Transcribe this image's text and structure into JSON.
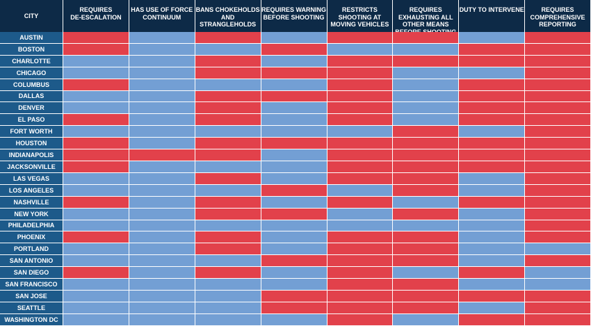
{
  "colors": {
    "header_bg": "#0d2a47",
    "row_label_bg": "#1d5a8a",
    "yes": "#e2414b",
    "no": "#739fd4",
    "grid_line": "#ffffff"
  },
  "chart_data": {
    "type": "heatmap",
    "row_header": "CITY",
    "columns": [
      "REQUIRES\nDE-ESCALATION",
      "HAS USE OF FORCE\nCONTINUUM",
      "BANS CHOKEHOLDS\nAND\nSTRANGLEHOLDS",
      "REQUIRES WARNING\nBEFORE SHOOTING",
      "RESTRICTS\nSHOOTING AT\nMOVING VEHICLES",
      "REQUIRES\nEXHAUSTING ALL\nOTHER MEANS\nBEFORE SHOOTING",
      "DUTY TO INTERVENE",
      "REQUIRES\nCOMPREHENSIVE\nREPORTING"
    ],
    "rows": [
      {
        "city": "AUSTIN",
        "values": [
          1,
          0,
          1,
          0,
          1,
          1,
          0,
          1
        ]
      },
      {
        "city": "BOSTON",
        "values": [
          1,
          0,
          0,
          1,
          0,
          0,
          1,
          1
        ]
      },
      {
        "city": "CHARLOTTE",
        "values": [
          0,
          0,
          1,
          0,
          1,
          1,
          1,
          1
        ]
      },
      {
        "city": "CHICAGO",
        "values": [
          0,
          0,
          1,
          1,
          1,
          0,
          0,
          1
        ]
      },
      {
        "city": "COLUMBUS",
        "values": [
          1,
          0,
          0,
          0,
          1,
          0,
          1,
          1
        ]
      },
      {
        "city": "DALLAS",
        "values": [
          0,
          0,
          1,
          1,
          1,
          0,
          1,
          1
        ]
      },
      {
        "city": "DENVER",
        "values": [
          0,
          0,
          1,
          0,
          1,
          0,
          1,
          1
        ]
      },
      {
        "city": "EL PASO",
        "values": [
          1,
          0,
          1,
          0,
          1,
          0,
          1,
          1
        ]
      },
      {
        "city": "FORT WORTH",
        "values": [
          0,
          0,
          0,
          0,
          0,
          1,
          0,
          1
        ]
      },
      {
        "city": "HOUSTON",
        "values": [
          1,
          0,
          1,
          1,
          1,
          1,
          1,
          1
        ]
      },
      {
        "city": "INDIANAPOLIS",
        "values": [
          1,
          1,
          1,
          0,
          1,
          1,
          1,
          1
        ]
      },
      {
        "city": "JACKSONVILLE",
        "values": [
          1,
          0,
          0,
          0,
          1,
          1,
          1,
          1
        ]
      },
      {
        "city": "LAS VEGAS",
        "values": [
          0,
          0,
          1,
          0,
          1,
          1,
          0,
          1
        ]
      },
      {
        "city": "LOS ANGELES",
        "values": [
          0,
          0,
          0,
          1,
          0,
          1,
          0,
          1
        ]
      },
      {
        "city": "NASHVILLE",
        "values": [
          1,
          0,
          1,
          0,
          1,
          0,
          1,
          1
        ]
      },
      {
        "city": "NEW YORK",
        "values": [
          0,
          0,
          1,
          1,
          0,
          1,
          0,
          1
        ]
      },
      {
        "city": "PHILADELPHIA",
        "values": [
          0,
          0,
          0,
          0,
          0,
          0,
          0,
          1
        ]
      },
      {
        "city": "PHOENIX",
        "values": [
          1,
          0,
          1,
          0,
          1,
          1,
          0,
          1
        ]
      },
      {
        "city": "PORTLAND",
        "values": [
          0,
          0,
          1,
          0,
          1,
          1,
          0,
          0
        ]
      },
      {
        "city": "SAN ANTONIO",
        "values": [
          0,
          0,
          0,
          1,
          1,
          1,
          0,
          1
        ]
      },
      {
        "city": "SAN DIEGO",
        "values": [
          1,
          0,
          1,
          0,
          1,
          0,
          1,
          0
        ]
      },
      {
        "city": "SAN FRANCISCO",
        "values": [
          0,
          0,
          0,
          0,
          1,
          1,
          0,
          0
        ]
      },
      {
        "city": "SAN JOSE",
        "values": [
          0,
          0,
          0,
          1,
          1,
          1,
          1,
          1
        ]
      },
      {
        "city": "SEATTLE",
        "values": [
          0,
          0,
          0,
          1,
          1,
          1,
          0,
          1
        ]
      },
      {
        "city": "WASHINGTON DC",
        "values": [
          0,
          0,
          0,
          0,
          1,
          0,
          1,
          1
        ]
      }
    ]
  }
}
